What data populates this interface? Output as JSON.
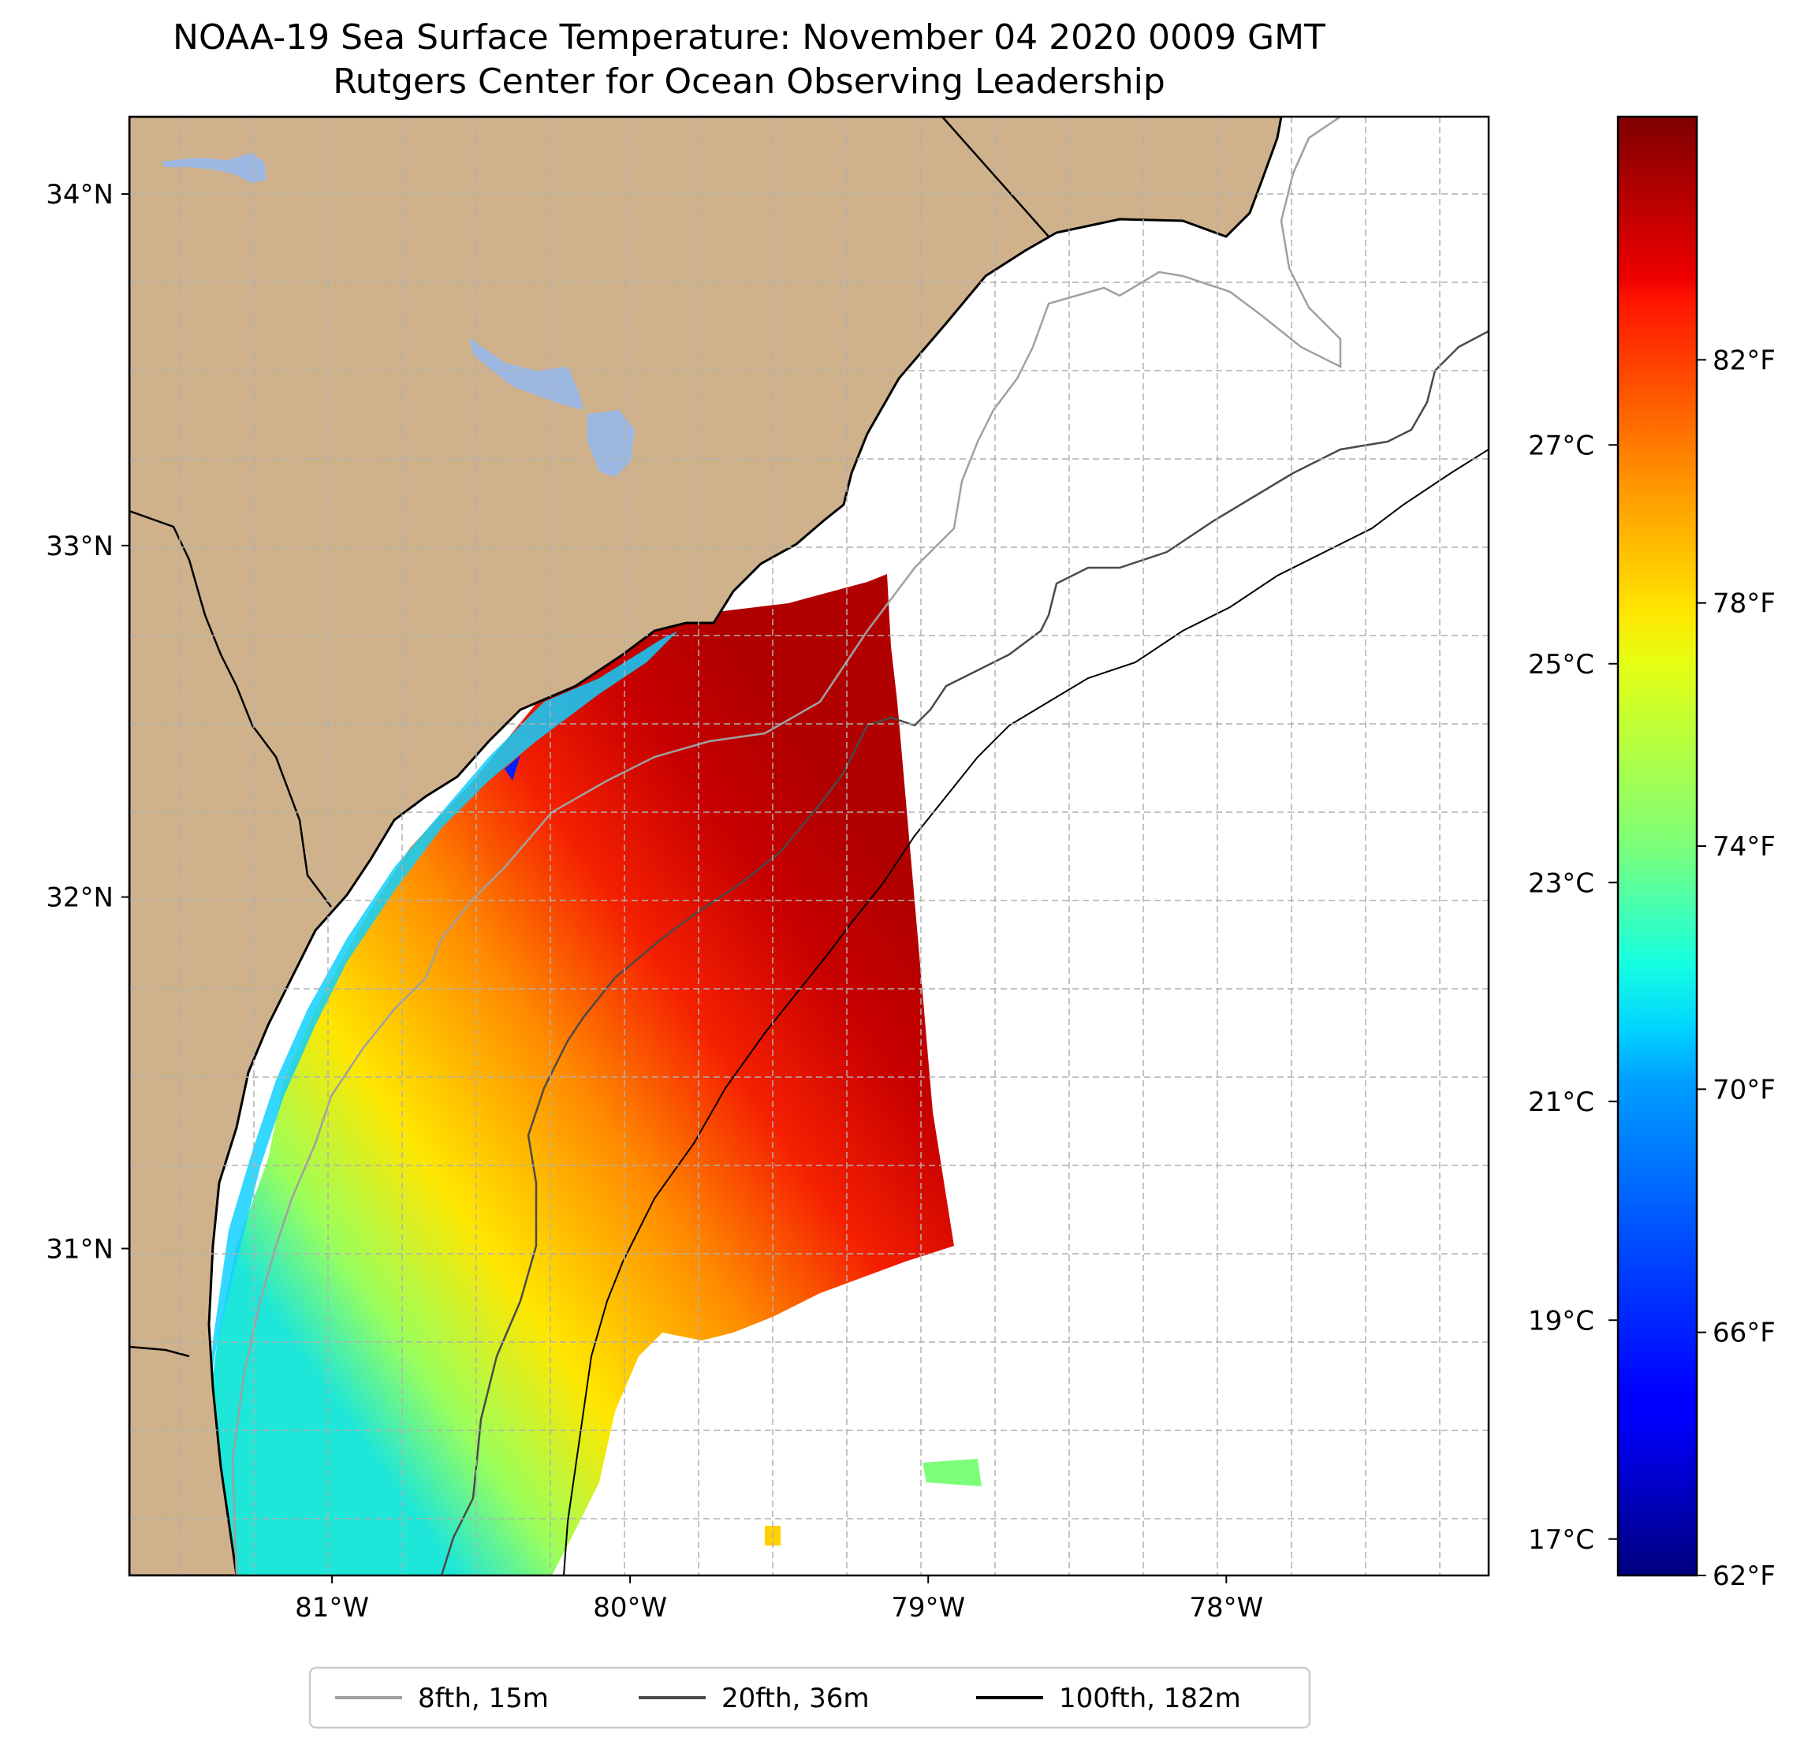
{
  "title": "NOAA-19 Sea Surface Temperature: November 04 2020 0009 GMT",
  "subtitle": "Rutgers Center for Ocean Observing Leadership",
  "map": {
    "lon_range": [
      -81.68,
      -77.12
    ],
    "lat_range": [
      30.07,
      34.22
    ],
    "lat_ticks": [
      {
        "value": 34,
        "label": "34°N"
      },
      {
        "value": 33,
        "label": "33°N"
      },
      {
        "value": 32,
        "label": "32°N"
      },
      {
        "value": 31,
        "label": "31°N"
      }
    ],
    "lon_ticks": [
      {
        "value": -81,
        "label": "81°W"
      },
      {
        "value": -80,
        "label": "80°W"
      },
      {
        "value": -79,
        "label": "79°W"
      },
      {
        "value": -78,
        "label": "78°W"
      }
    ],
    "grid": true,
    "land_color": "#cfb28b",
    "water_body_color": "#9cb8e2"
  },
  "colorbar": {
    "colormap": "jet",
    "range_f": [
      62,
      86
    ],
    "fahrenheit_ticks": [
      {
        "value": 82,
        "label": "82°F"
      },
      {
        "value": 78,
        "label": "78°F"
      },
      {
        "value": 74,
        "label": "74°F"
      },
      {
        "value": 70,
        "label": "70°F"
      },
      {
        "value": 66,
        "label": "66°F"
      },
      {
        "value": 62,
        "label": "62°F"
      }
    ],
    "celsius_ticks": [
      {
        "value": 27,
        "label": "27°C"
      },
      {
        "value": 25,
        "label": "25°C"
      },
      {
        "value": 23,
        "label": "23°C"
      },
      {
        "value": 21,
        "label": "21°C"
      },
      {
        "value": 19,
        "label": "19°C"
      },
      {
        "value": 17,
        "label": "17°C"
      }
    ]
  },
  "legend": {
    "placement": "bottom-center",
    "entries": [
      {
        "label": "8fth, 15m",
        "color": "#a0a0a0"
      },
      {
        "label": "20fth, 36m",
        "color": "#4a4a4a"
      },
      {
        "label": "100fth, 182m",
        "color": "#000000"
      }
    ]
  }
}
